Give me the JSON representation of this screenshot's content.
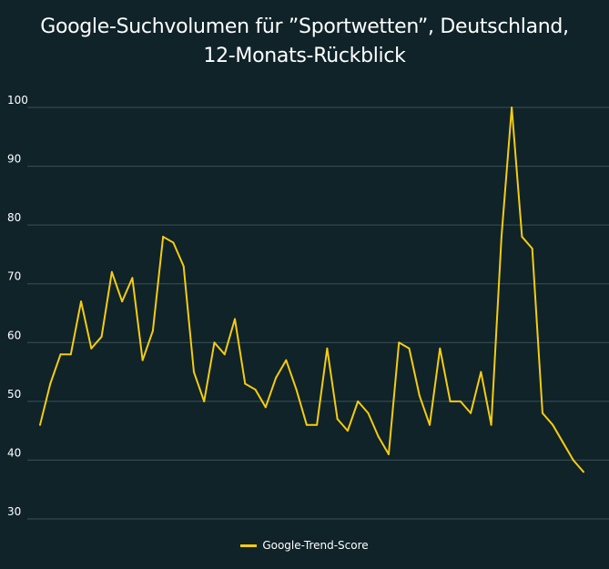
{
  "chart_data": {
    "type": "line",
    "title_line1": "Google-Suchvolumen für ”Sportwetten”, Deutschland,",
    "title_line2": "12-Monats-Rückblick",
    "xlabel": "",
    "ylabel": "",
    "ylim": [
      30,
      100
    ],
    "yticks": [
      "30",
      "40",
      "50",
      "60",
      "70",
      "80",
      "90",
      "100"
    ],
    "grid": true,
    "legend_position": "bottom-center",
    "series": [
      {
        "name": "Google-Trend-Score",
        "color": "#f5cc10",
        "values": [
          46,
          53,
          58,
          58,
          67,
          59,
          61,
          72,
          67,
          71,
          57,
          62,
          78,
          77,
          73,
          55,
          50,
          60,
          58,
          64,
          53,
          52,
          49,
          54,
          57,
          52,
          46,
          46,
          59,
          47,
          45,
          50,
          48,
          44,
          41,
          60,
          59,
          51,
          46,
          59,
          50,
          50,
          48,
          55,
          46,
          78,
          100,
          78,
          76,
          48,
          46,
          43,
          40,
          38
        ]
      }
    ]
  }
}
